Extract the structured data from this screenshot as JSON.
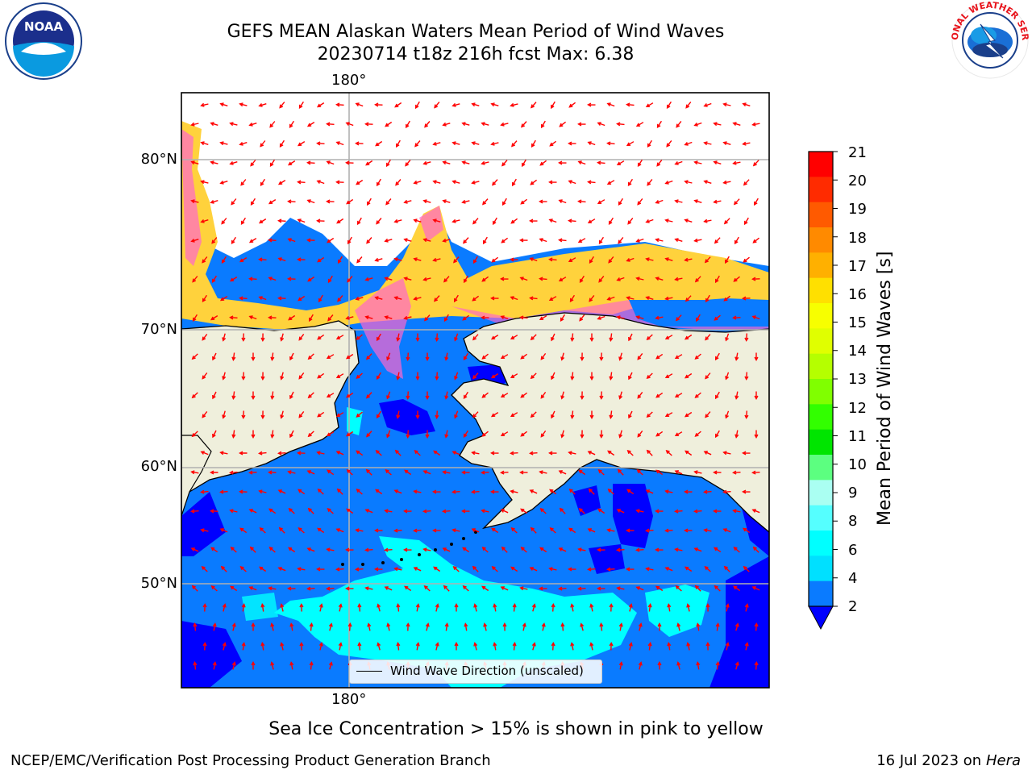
{
  "header": {
    "title_line1": "GEFS MEAN Alaskan Waters Mean Period of Wind Waves",
    "title_line2": "20230714 t18z 216h fcst   Max: 6.38"
  },
  "logos": {
    "left": "NOAA",
    "left_ring": "NATIONAL OCEANIC AND ATMOSPHERIC ADMINISTRATION · U.S. DEPARTMENT OF COMMERCE",
    "right": "NATIONAL WEATHER SERVICE"
  },
  "map": {
    "lon_label_top": "180°",
    "lon_label_bottom": "180°",
    "lat_labels": [
      "80°N",
      "70°N",
      "60°N",
      "50°N"
    ],
    "legend_label": "Wind Wave Direction (unscaled)",
    "colors": {
      "land": "#efefdc",
      "ocean_2_4": "#0a7bff",
      "ocean_below_2": "#0000ff",
      "ocean_4_6": "#00ffff",
      "ice_pink": "#ff66cc",
      "ice_yellow": "#ffd23c",
      "arrow": "#ff0000"
    }
  },
  "colorbar": {
    "label": "Mean Period of Wind Waves [s]",
    "ticks": [
      "21",
      "20",
      "19",
      "18",
      "17",
      "16",
      "15",
      "14",
      "13",
      "12",
      "11",
      "10",
      "9",
      "8",
      "6",
      "4",
      "2"
    ],
    "colors": [
      "#ff0000",
      "#ff2b00",
      "#ff5a00",
      "#ff8a00",
      "#ffb000",
      "#ffe000",
      "#f7ff00",
      "#e0ff00",
      "#b5ff00",
      "#80ff00",
      "#32ff00",
      "#00e500",
      "#5cff80",
      "#aafff2",
      "#55ffff",
      "#00ffff",
      "#00e0ff",
      "#0a7bff"
    ],
    "extend_color": "#0000ff"
  },
  "caption": "Sea Ice Concentration > 15% is shown in pink to yellow",
  "footer": {
    "left": "NCEP/EMC/Verification Post Processing Product Generation Branch",
    "date": "16 Jul 2023 on ",
    "machine": "Hera"
  }
}
